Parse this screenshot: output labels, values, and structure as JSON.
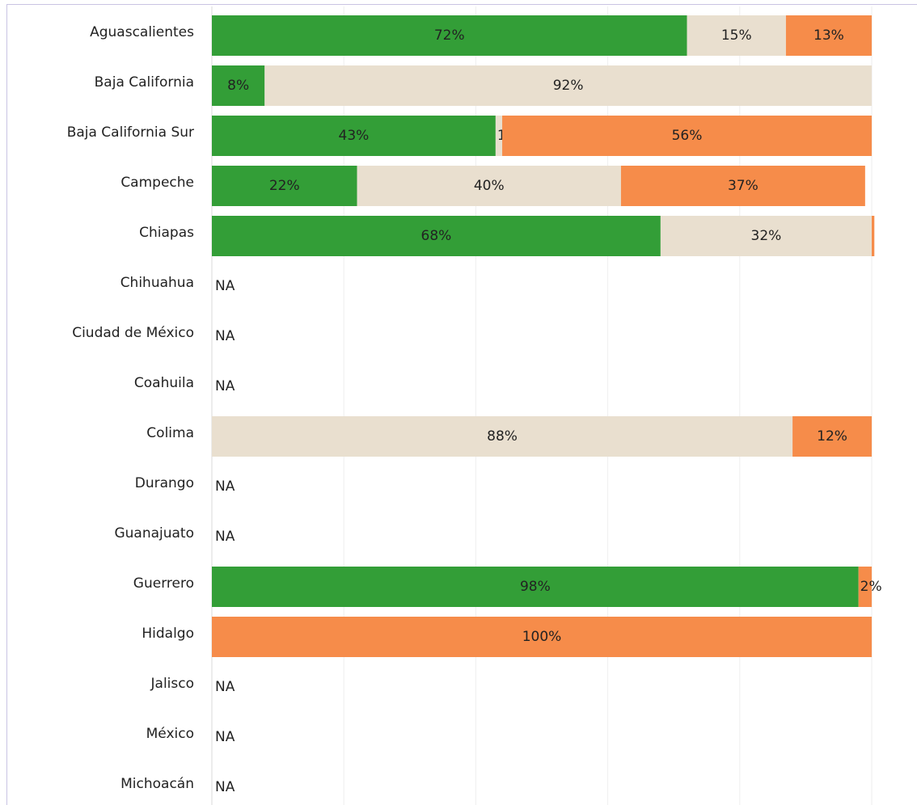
{
  "chart_data": {
    "type": "stacked-bar-horizontal",
    "categories": [
      "Aguascalientes",
      "Baja California",
      "Baja California Sur",
      "Campeche",
      "Chiapas",
      "Chihuahua",
      "Ciudad de México",
      "Coahuila",
      "Colima",
      "Durango",
      "Guanajuato",
      "Guerrero",
      "Hidalgo",
      "Jalisco",
      "México",
      "Michoacán"
    ],
    "series": [
      {
        "color": "#339e37",
        "values": [
          72,
          8,
          43,
          22,
          68,
          null,
          null,
          null,
          null,
          null,
          null,
          98,
          null,
          null,
          null,
          null
        ],
        "value_labels": [
          "72%",
          "8%",
          "43%",
          "22%",
          "68%",
          null,
          null,
          null,
          null,
          null,
          null,
          "98%",
          null,
          null,
          null,
          null
        ]
      },
      {
        "color": "#e9dfcf",
        "values": [
          15,
          92,
          1,
          40,
          32,
          null,
          null,
          null,
          88,
          null,
          null,
          null,
          null,
          null,
          null,
          null
        ],
        "value_labels": [
          "15%",
          "92%",
          "1%",
          "40%",
          "32%",
          null,
          null,
          null,
          "88%",
          null,
          null,
          null,
          null,
          null,
          null,
          null
        ]
      },
      {
        "color": "#f68c4a",
        "values": [
          13,
          null,
          56,
          37,
          0.4,
          null,
          null,
          null,
          12,
          null,
          null,
          2,
          100,
          null,
          null,
          null
        ],
        "value_labels": [
          "13%",
          null,
          "56%",
          "37%",
          null,
          null,
          null,
          null,
          "12%",
          null,
          null,
          "2%",
          "100%",
          null,
          null,
          null
        ]
      }
    ],
    "na_labels": [
      null,
      null,
      null,
      null,
      null,
      "NA",
      "NA",
      "NA",
      null,
      "NA",
      "NA",
      null,
      null,
      "NA",
      "NA",
      "NA"
    ],
    "xlim": [
      0,
      100
    ],
    "xticks": [
      0,
      20,
      40,
      60,
      80,
      100
    ],
    "grid": true
  }
}
